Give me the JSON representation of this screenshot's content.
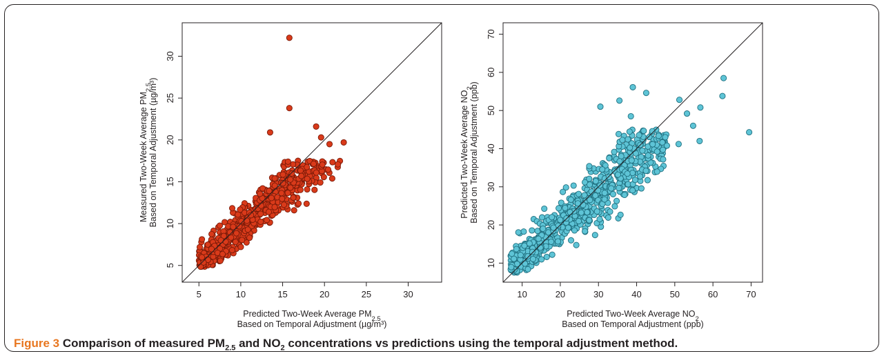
{
  "figure": {
    "label": "Figure 3",
    "caption_parts": [
      "Comparison of measured PM",
      "2.5",
      " and NO",
      "2",
      " concentrations vs predictions using the temporal adjustment method."
    ]
  },
  "colors": {
    "pm_fill": "#d93a1a",
    "pm_edge": "#7a1a08",
    "no2_fill": "#5ec4d6",
    "no2_edge": "#1f6f7f",
    "label": "#e8761f"
  },
  "chart_data": [
    {
      "type": "scatter",
      "xlabel_parts": [
        "Predicted Two-Week Average PM",
        "2.5"
      ],
      "xlabel_line2": "Based on Temporal Adjustment (µg/m³)",
      "ylabel_parts": [
        "Measured Two-Week Average PM",
        "2.5"
      ],
      "ylabel_line2": "Based on Temporal Adjustment (µg/m³)",
      "xlim": [
        3,
        34
      ],
      "ylim": [
        3,
        34
      ],
      "xticks": [
        "5",
        "10",
        "15",
        "20",
        "25",
        "30"
      ],
      "yticks": [
        "5",
        "10",
        "15",
        "20",
        "25",
        "30"
      ],
      "identity_line": true,
      "notable_points": [
        [
          15.8,
          32.2
        ],
        [
          15.8,
          23.8
        ],
        [
          13.5,
          20.9
        ],
        [
          19.0,
          21.6
        ],
        [
          19.6,
          20.3
        ],
        [
          22.3,
          19.7
        ],
        [
          20.6,
          19.5
        ]
      ],
      "bulk": {
        "n": 640,
        "x_range": [
          5,
          22
        ],
        "y_range": [
          4.8,
          17.5
        ],
        "slope": 0.9,
        "spread": 1.1
      }
    },
    {
      "type": "scatter",
      "xlabel_parts": [
        "Predicted Two-Week Average NO",
        "2"
      ],
      "xlabel_line2": "Based on Temporal Adjustment (ppb)",
      "ylabel_parts": [
        "Predicted Two-Week Average NO",
        "2"
      ],
      "ylabel_line2": "Based on Temporal Adjustment (ppb)",
      "xlim": [
        5,
        73
      ],
      "ylim": [
        5,
        73
      ],
      "xticks": [
        "10",
        "20",
        "30",
        "40",
        "50",
        "60",
        "70"
      ],
      "yticks": [
        "10",
        "20",
        "30",
        "40",
        "50",
        "60",
        "70"
      ],
      "identity_line": true,
      "notable_points": [
        [
          62.8,
          58.5
        ],
        [
          62.5,
          53.8
        ],
        [
          51.2,
          52.8
        ],
        [
          39.0,
          56.1
        ],
        [
          42.5,
          54.6
        ],
        [
          35.5,
          52.6
        ],
        [
          30.5,
          51.0
        ],
        [
          56.7,
          50.8
        ],
        [
          69.5,
          44.3
        ],
        [
          56.5,
          42.0
        ],
        [
          54.8,
          46.0
        ],
        [
          53.2,
          49.2
        ],
        [
          47.5,
          43.0
        ],
        [
          51.0,
          41.2
        ],
        [
          38.5,
          48.5
        ]
      ],
      "bulk": {
        "n": 700,
        "x_range": [
          7,
          48
        ],
        "y_range": [
          7.5,
          45
        ],
        "slope": 0.88,
        "spread": 3.0
      }
    }
  ]
}
